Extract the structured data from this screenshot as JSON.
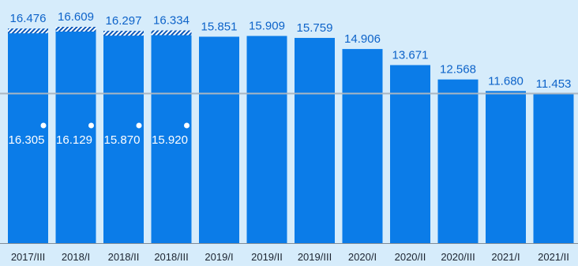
{
  "chart_data": {
    "type": "bar",
    "categories": [
      "2017/III",
      "2018/I",
      "2018/II",
      "2018/III",
      "2019/I",
      "2019/II",
      "2019/III",
      "2020/I",
      "2020/II",
      "2020/III",
      "2021/I",
      "2021/II"
    ],
    "series": [
      {
        "values": [
          16.476,
          16.609,
          16.297,
          16.334,
          15.851,
          15.909,
          15.759,
          14.906,
          13.671,
          12.568,
          11.68,
          11.453
        ],
        "labels": [
          "16.476",
          "16.609",
          "16.297",
          "16.334",
          "15.851",
          "15.909",
          "15.759",
          "14.906",
          "13.671",
          "12.568",
          "11.680",
          "11.453"
        ]
      },
      {
        "values": [
          16.305,
          16.129,
          15.87,
          15.92,
          null,
          null,
          null,
          null,
          null,
          null,
          null,
          null
        ],
        "labels": [
          "16.305",
          "16.129",
          "15.870",
          "15.920"
        ]
      }
    ],
    "reference_line": 11.453,
    "ylim": [
      0,
      17.5
    ],
    "title": "",
    "xlabel": "",
    "ylabel": "",
    "colors": {
      "bar": "#0b7ce8",
      "hatch": "#0a56b8",
      "label": "#0d63c9",
      "background": "#d6ecfb",
      "reference_line": "#a9b6c2",
      "axis": "#7f8b96"
    }
  }
}
